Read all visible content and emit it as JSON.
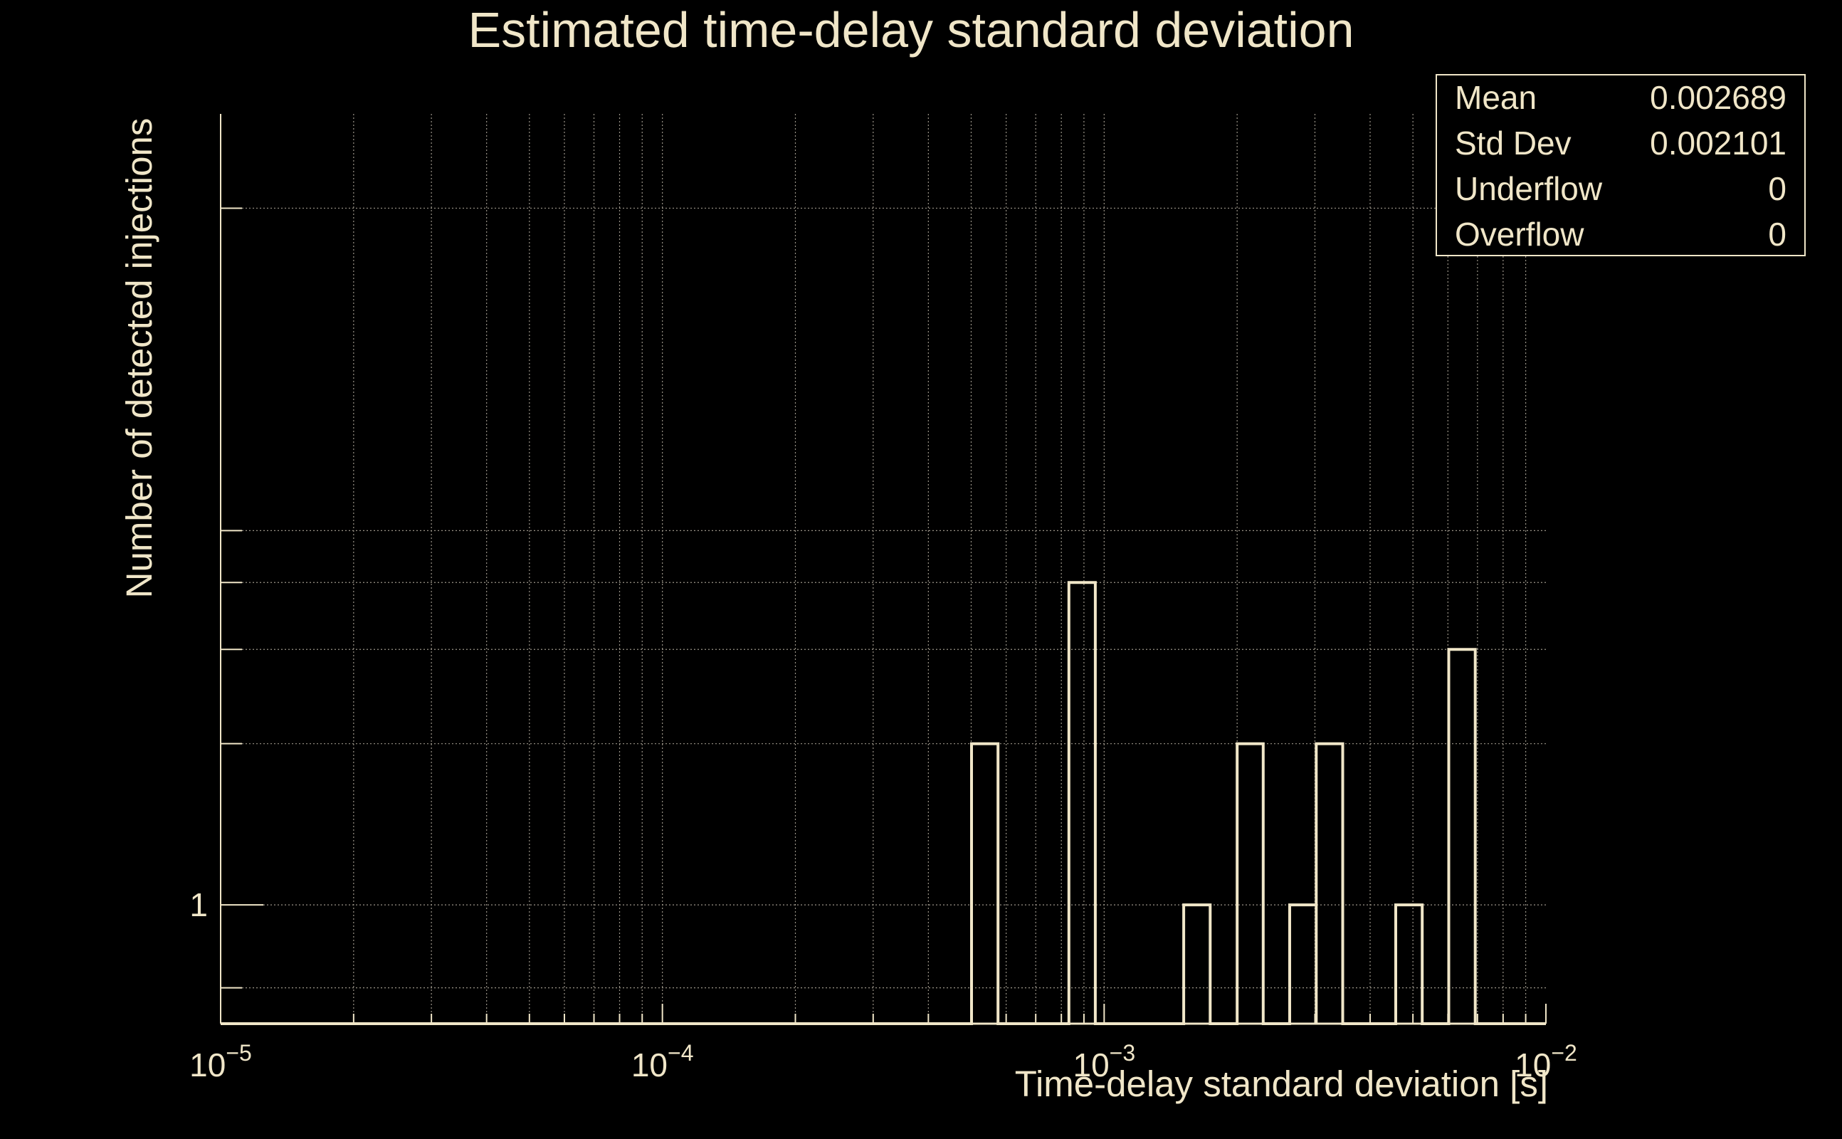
{
  "colors": {
    "background": "#000000",
    "foreground": "#f0e6c8",
    "grid": "#9a9488"
  },
  "chart_data": {
    "type": "bar",
    "title": "Estimated time-delay standard deviation",
    "xlabel": "Time-delay standard deviation [s]",
    "ylabel": "Number of detected injections",
    "x_scale": "log",
    "y_scale": "log",
    "xlim": [
      1e-05,
      0.01
    ],
    "ylim": [
      0.6,
      30
    ],
    "grid": true,
    "x_major_ticks": [
      {
        "value": 1e-05,
        "base": "10",
        "exp": "−5"
      },
      {
        "value": 0.0001,
        "base": "10",
        "exp": "−4"
      },
      {
        "value": 0.001,
        "base": "10",
        "exp": "−3"
      },
      {
        "value": 0.01,
        "base": "10",
        "exp": "−2"
      }
    ],
    "y_tick_labels": [
      {
        "value": 1,
        "label": "1"
      }
    ],
    "bins": [
      {
        "x0": 0.000501,
        "x1": 0.000575,
        "count": 2
      },
      {
        "x0": 0.000832,
        "x1": 0.000955,
        "count": 4
      },
      {
        "x0": 0.001514,
        "x1": 0.001738,
        "count": 1
      },
      {
        "x0": 0.002,
        "x1": 0.002291,
        "count": 2
      },
      {
        "x0": 0.00263,
        "x1": 0.00302,
        "count": 1
      },
      {
        "x0": 0.00302,
        "x1": 0.003467,
        "count": 2
      },
      {
        "x0": 0.004571,
        "x1": 0.005248,
        "count": 1
      },
      {
        "x0": 0.006026,
        "x1": 0.006918,
        "count": 3
      }
    ],
    "stats": [
      {
        "label": "Mean",
        "value": "0.002689"
      },
      {
        "label": "Std Dev",
        "value": "0.002101"
      },
      {
        "label": "Underflow",
        "value": "0"
      },
      {
        "label": "Overflow",
        "value": "0"
      }
    ],
    "legend_placement": "top-right"
  }
}
